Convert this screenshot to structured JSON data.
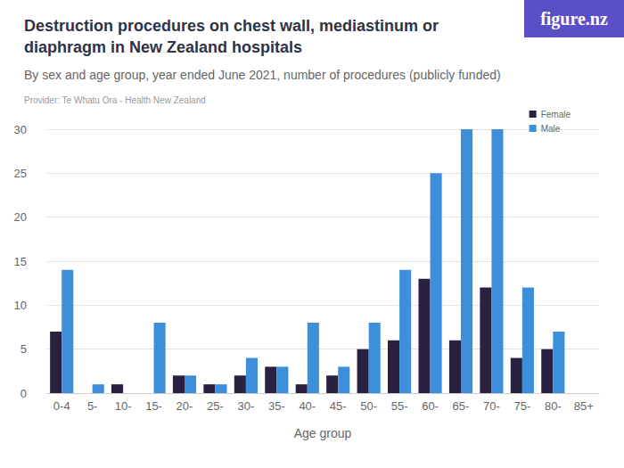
{
  "chart_data": {
    "type": "bar",
    "title": "Destruction procedures on chest wall, mediastinum or diaphragm in New Zealand hospitals",
    "subtitle": "By sex and age group, year ended June 2021, number of procedures (publicly funded)",
    "source": "Provider: Te Whatu Ora - Health New Zealand",
    "logo": "figure.nz",
    "x_label": "Age group",
    "categories": [
      "0-4",
      "5-",
      "10-",
      "15-",
      "20-",
      "25-",
      "30-",
      "35-",
      "40-",
      "45-",
      "50-",
      "55-",
      "60-",
      "65-",
      "70-",
      "75-",
      "80-",
      "85+"
    ],
    "series": [
      {
        "name": "Female",
        "color": "#2a2141",
        "values": [
          7,
          0,
          1,
          0,
          2,
          1,
          2,
          3,
          1,
          2,
          5,
          6,
          13,
          6,
          12,
          4,
          5,
          0
        ]
      },
      {
        "name": "Male",
        "color": "#3d8fdc",
        "values": [
          14,
          1,
          0,
          8,
          2,
          1,
          4,
          3,
          8,
          3,
          8,
          14,
          25,
          30,
          30,
          12,
          7,
          0
        ]
      }
    ],
    "ylim": [
      0,
      30
    ],
    "yticks": [
      0,
      5,
      10,
      15,
      20,
      25,
      30
    ],
    "grid": true,
    "legend": "top-right"
  }
}
